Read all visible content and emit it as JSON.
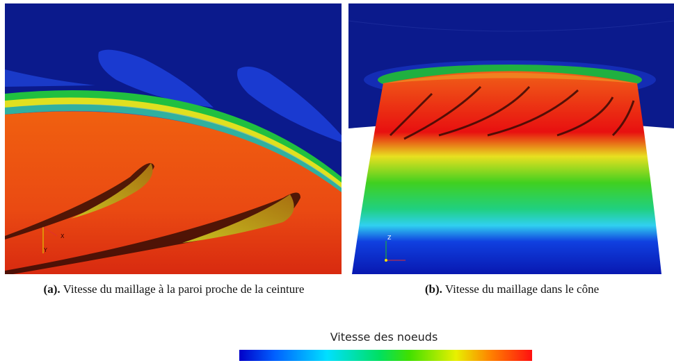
{
  "figure": {
    "panels": [
      {
        "label": "(a).",
        "caption": "Vitesse du maillage à la paroi proche de la ceinture",
        "axes": [
          "X",
          "Y"
        ]
      },
      {
        "label": "(b).",
        "caption": "Vitesse du maillage dans le cône",
        "axes": [
          "Z"
        ]
      }
    ],
    "colorbar": {
      "title": "Vitesse des noeuds"
    }
  }
}
